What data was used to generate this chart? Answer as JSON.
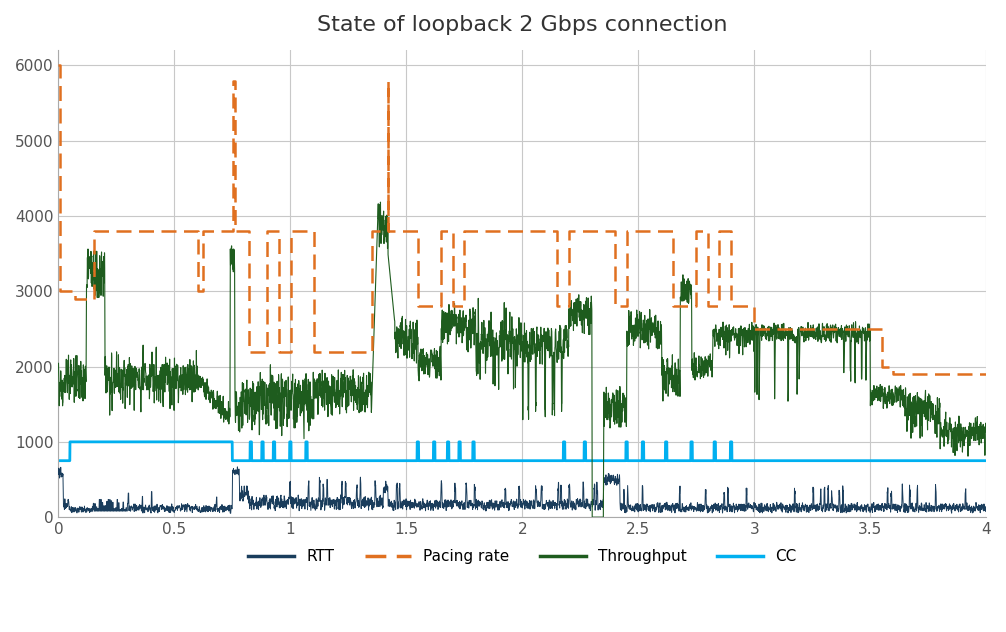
{
  "title": "State of loopback 2 Gbps connection",
  "title_fontsize": 16,
  "xlim": [
    0,
    4
  ],
  "ylim": [
    0,
    6200
  ],
  "yticks": [
    0,
    1000,
    2000,
    3000,
    4000,
    5000,
    6000
  ],
  "xticks": [
    0,
    0.5,
    1,
    1.5,
    2,
    2.5,
    3,
    3.5,
    4
  ],
  "colors": {
    "rtt": "#1a3d5c",
    "pacing": "#e07020",
    "throughput": "#1e5c1e",
    "cc": "#00b0f0"
  },
  "legend_labels": [
    "RTT",
    "Pacing rate",
    "Throughput",
    "CC"
  ],
  "background": "#ffffff",
  "grid_color": "#c8c8c8",
  "pacing_t": [
    0.0,
    0.005,
    0.006,
    0.07,
    0.071,
    0.15,
    0.151,
    0.6,
    0.601,
    0.62,
    0.621,
    0.75,
    0.751,
    0.76,
    0.761,
    0.82,
    0.821,
    0.9,
    0.901,
    0.95,
    0.951,
    1.0,
    1.001,
    1.1,
    1.101,
    1.35,
    1.351,
    1.42,
    1.421,
    1.5,
    1.501,
    1.55,
    1.551,
    1.65,
    1.651,
    1.7,
    1.701,
    1.75,
    1.751,
    1.85,
    1.851,
    1.9,
    1.901,
    2.0,
    2.001,
    2.1,
    2.101,
    2.15,
    2.151,
    2.2,
    2.201,
    2.35,
    2.351,
    2.4,
    2.401,
    2.45,
    2.451,
    2.55,
    2.551,
    2.6,
    2.601,
    2.65,
    2.651,
    2.75,
    2.751,
    2.8,
    2.801,
    2.85,
    2.851,
    2.9,
    2.901,
    3.0,
    3.001,
    3.45,
    3.451,
    3.55,
    3.551,
    3.6,
    3.601,
    3.65,
    3.651,
    3.7,
    3.701,
    3.8,
    3.801,
    3.9,
    3.901,
    4.0
  ],
  "pacing_v": [
    6000,
    6000,
    3000,
    3000,
    2900,
    2900,
    3800,
    3800,
    3000,
    3000,
    3800,
    3800,
    5800,
    5800,
    3800,
    3800,
    2200,
    2200,
    3800,
    3800,
    2200,
    2200,
    3800,
    3800,
    2200,
    2200,
    3800,
    5800,
    3800,
    3800,
    3800,
    2800,
    2800,
    3800,
    3800,
    2800,
    2800,
    3800,
    3800,
    3800,
    3800,
    3800,
    3800,
    3800,
    3800,
    3800,
    3800,
    2800,
    2800,
    3800,
    3800,
    3800,
    3800,
    2800,
    2800,
    3800,
    3800,
    3800,
    3800,
    3800,
    3800,
    2800,
    2800,
    3800,
    3800,
    2800,
    2800,
    3800,
    3800,
    2800,
    2800,
    2500,
    2500,
    2500,
    2500,
    2000,
    2000,
    1900,
    1900,
    1900,
    1900,
    1900,
    1900,
    1900,
    1900,
    1900,
    1900,
    1900
  ],
  "cc_base": 750,
  "cc_high": 1000,
  "cc_step_start": 0.05,
  "cc_step_end": 0.75,
  "cc_pulses": [
    0.83,
    0.88,
    0.93,
    1.0,
    1.07,
    1.55,
    1.62,
    1.68,
    1.73,
    1.79,
    2.18,
    2.27,
    2.45,
    2.52,
    2.62,
    2.73,
    2.83,
    2.9
  ]
}
